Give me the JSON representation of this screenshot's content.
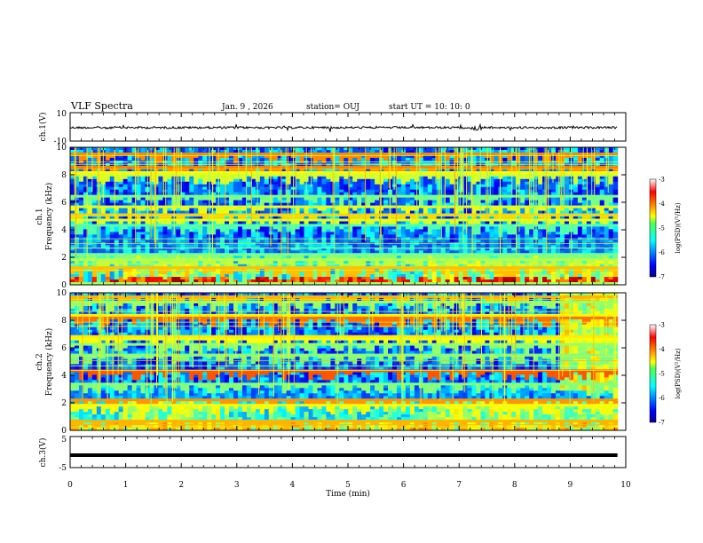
{
  "header": {
    "title": "VLF Spectra",
    "date": "Jan. 9 , 2026",
    "station": "station= OUJ",
    "start_time": "start UT =  10: 10: 0"
  },
  "chart_data": [
    {
      "type": "line",
      "name": "ch1-waveform",
      "ylabel": "ch.1(V)",
      "yticks": [
        "10",
        "-10"
      ],
      "ylim": [
        -10,
        10
      ],
      "baseline": -0.5
    },
    {
      "type": "heatmap",
      "name": "ch1-spectrogram",
      "ylabel": "ch.1\nFrequency (kHz)",
      "ylabel_line1": "ch.1",
      "ylabel_line2": "Frequency (kHz)",
      "yticks": [
        "0",
        "2",
        "4",
        "6",
        "8",
        "10"
      ],
      "ylim": [
        0,
        10
      ],
      "colorbar": {
        "label": "log(PSD)(V²/Hz)",
        "ticks": [
          "-3",
          "-4",
          "-5",
          "-6",
          "-7"
        ],
        "range": [
          -7,
          -3
        ]
      }
    },
    {
      "type": "heatmap",
      "name": "ch2-spectrogram",
      "ylabel_line1": "ch.2",
      "ylabel_line2": "Frequency (kHz)",
      "yticks": [
        "0",
        "2",
        "4",
        "6",
        "8",
        "10"
      ],
      "ylim": [
        0,
        10
      ],
      "colorbar": {
        "label": "log(PSD)(V²/Hz)",
        "ticks": [
          "-3",
          "-4",
          "-5",
          "-6",
          "-7"
        ],
        "range": [
          -7,
          -3
        ]
      }
    },
    {
      "type": "line",
      "name": "ch3-waveform",
      "ylabel": "ch.3(V)",
      "yticks": [
        "5",
        "-5"
      ],
      "ylim": [
        -5,
        5
      ],
      "baseline": -1.0
    }
  ],
  "xaxis": {
    "label": "Time (min)",
    "ticks": [
      "0",
      "1",
      "2",
      "3",
      "4",
      "5",
      "6",
      "7",
      "8",
      "9",
      "10"
    ],
    "xlim": [
      0,
      10
    ],
    "data_end": 9.85
  },
  "colors": {
    "axis": "#000000",
    "background": "#ffffff"
  }
}
